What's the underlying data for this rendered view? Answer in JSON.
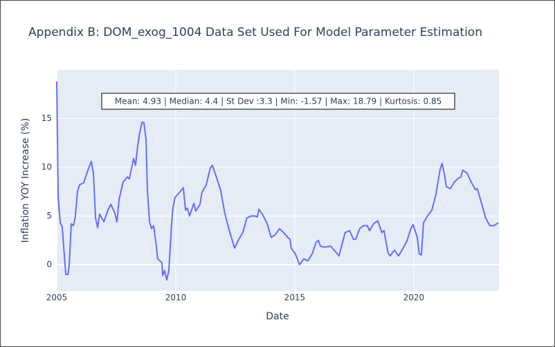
{
  "chart_data": {
    "type": "line",
    "title": "Appendix B: DOM_exog_1004 Data Set Used For Model Parameter Estimation",
    "x_label": "Date",
    "y_label": "Inflation YOY Increase (%)",
    "annotation": "Mean: 4.93 | Median: 4.4 | St Dev :3.3 | Min: -1.57 | Max: 18.79 | Kurtosis: 0.85",
    "color": "#636efa",
    "grid": true,
    "xlim": [
      2005,
      2023.58
    ],
    "xticks": [
      2005,
      2010,
      2015,
      2020
    ],
    "ylim": [
      -2.7,
      20
    ],
    "yticks": [
      0,
      5,
      10,
      15
    ],
    "x": [
      2005.0,
      2005.06,
      2005.15,
      2005.23,
      2005.32,
      2005.38,
      2005.47,
      2005.52,
      2005.61,
      2005.7,
      2005.78,
      2005.87,
      2005.96,
      2006.13,
      2006.31,
      2006.45,
      2006.54,
      2006.63,
      2006.72,
      2006.8,
      2006.98,
      2007.15,
      2007.27,
      2007.44,
      2007.53,
      2007.62,
      2007.79,
      2007.97,
      2008.05,
      2008.23,
      2008.31,
      2008.4,
      2008.49,
      2008.58,
      2008.66,
      2008.75,
      2008.81,
      2008.9,
      2008.98,
      2009.07,
      2009.16,
      2009.24,
      2009.42,
      2009.45,
      2009.53,
      2009.62,
      2009.71,
      2009.83,
      2009.88,
      2009.97,
      2010.15,
      2010.32,
      2010.41,
      2010.49,
      2010.58,
      2010.76,
      2010.84,
      2011.02,
      2011.1,
      2011.28,
      2011.45,
      2011.54,
      2011.72,
      2011.89,
      2012.06,
      2012.24,
      2012.47,
      2012.65,
      2012.82,
      2012.99,
      2013.17,
      2013.34,
      2013.43,
      2013.49,
      2013.66,
      2013.84,
      2014.01,
      2014.19,
      2014.36,
      2014.53,
      2014.71,
      2014.8,
      2014.85,
      2015.03,
      2015.2,
      2015.38,
      2015.55,
      2015.73,
      2015.9,
      2015.99,
      2016.08,
      2016.25,
      2016.51,
      2016.69,
      2016.86,
      2017.03,
      2017.12,
      2017.3,
      2017.47,
      2017.56,
      2017.73,
      2017.88,
      2018.05,
      2018.14,
      2018.31,
      2018.49,
      2018.66,
      2018.75,
      2018.92,
      2019.01,
      2019.19,
      2019.36,
      2019.53,
      2019.71,
      2019.88,
      2019.97,
      2020.15,
      2020.23,
      2020.32,
      2020.41,
      2020.58,
      2020.76,
      2020.93,
      2021.1,
      2021.19,
      2021.28,
      2021.37,
      2021.54,
      2021.71,
      2021.89,
      2021.98,
      2022.06,
      2022.24,
      2022.41,
      2022.59,
      2022.67,
      2022.85,
      2023.02,
      2023.2,
      2023.28,
      2023.37,
      2023.55
    ],
    "values": [
      18.79,
      6.9,
      4.3,
      3.9,
      0.9,
      -1.0,
      -1.0,
      -0.2,
      4.2,
      4.0,
      4.9,
      7.5,
      8.2,
      8.4,
      9.7,
      10.6,
      9.4,
      4.8,
      3.8,
      5.2,
      4.4,
      5.6,
      6.2,
      5.3,
      4.4,
      6.7,
      8.5,
      9.0,
      8.8,
      10.9,
      10.2,
      12.2,
      13.6,
      14.6,
      14.6,
      12.9,
      7.6,
      4.4,
      3.7,
      4.0,
      2.4,
      0.6,
      0.2,
      -1.1,
      -0.6,
      -1.57,
      -0.6,
      4.3,
      5.8,
      6.9,
      7.4,
      7.9,
      5.6,
      5.8,
      5.0,
      6.3,
      5.5,
      6.2,
      7.4,
      8.2,
      9.9,
      10.2,
      8.9,
      7.6,
      5.3,
      3.6,
      1.7,
      2.6,
      3.3,
      4.8,
      5.0,
      5.0,
      4.9,
      5.7,
      5.1,
      4.2,
      2.8,
      3.1,
      3.7,
      3.3,
      2.8,
      2.6,
      1.7,
      1.1,
      0.0,
      0.6,
      0.4,
      1.1,
      2.3,
      2.5,
      1.9,
      1.8,
      1.9,
      1.4,
      0.9,
      2.5,
      3.3,
      3.5,
      2.6,
      2.6,
      3.7,
      4.0,
      4.0,
      3.5,
      4.2,
      4.5,
      3.3,
      3.5,
      1.2,
      0.9,
      1.5,
      0.9,
      1.6,
      2.4,
      3.7,
      4.1,
      2.8,
      1.1,
      1.0,
      4.3,
      5.0,
      5.6,
      7.2,
      9.7,
      10.4,
      9.4,
      8.0,
      7.8,
      8.5,
      8.9,
      9.0,
      9.7,
      9.4,
      8.5,
      7.7,
      7.8,
      6.3,
      4.8,
      4.0,
      4.0,
      4.0,
      4.3
    ]
  }
}
